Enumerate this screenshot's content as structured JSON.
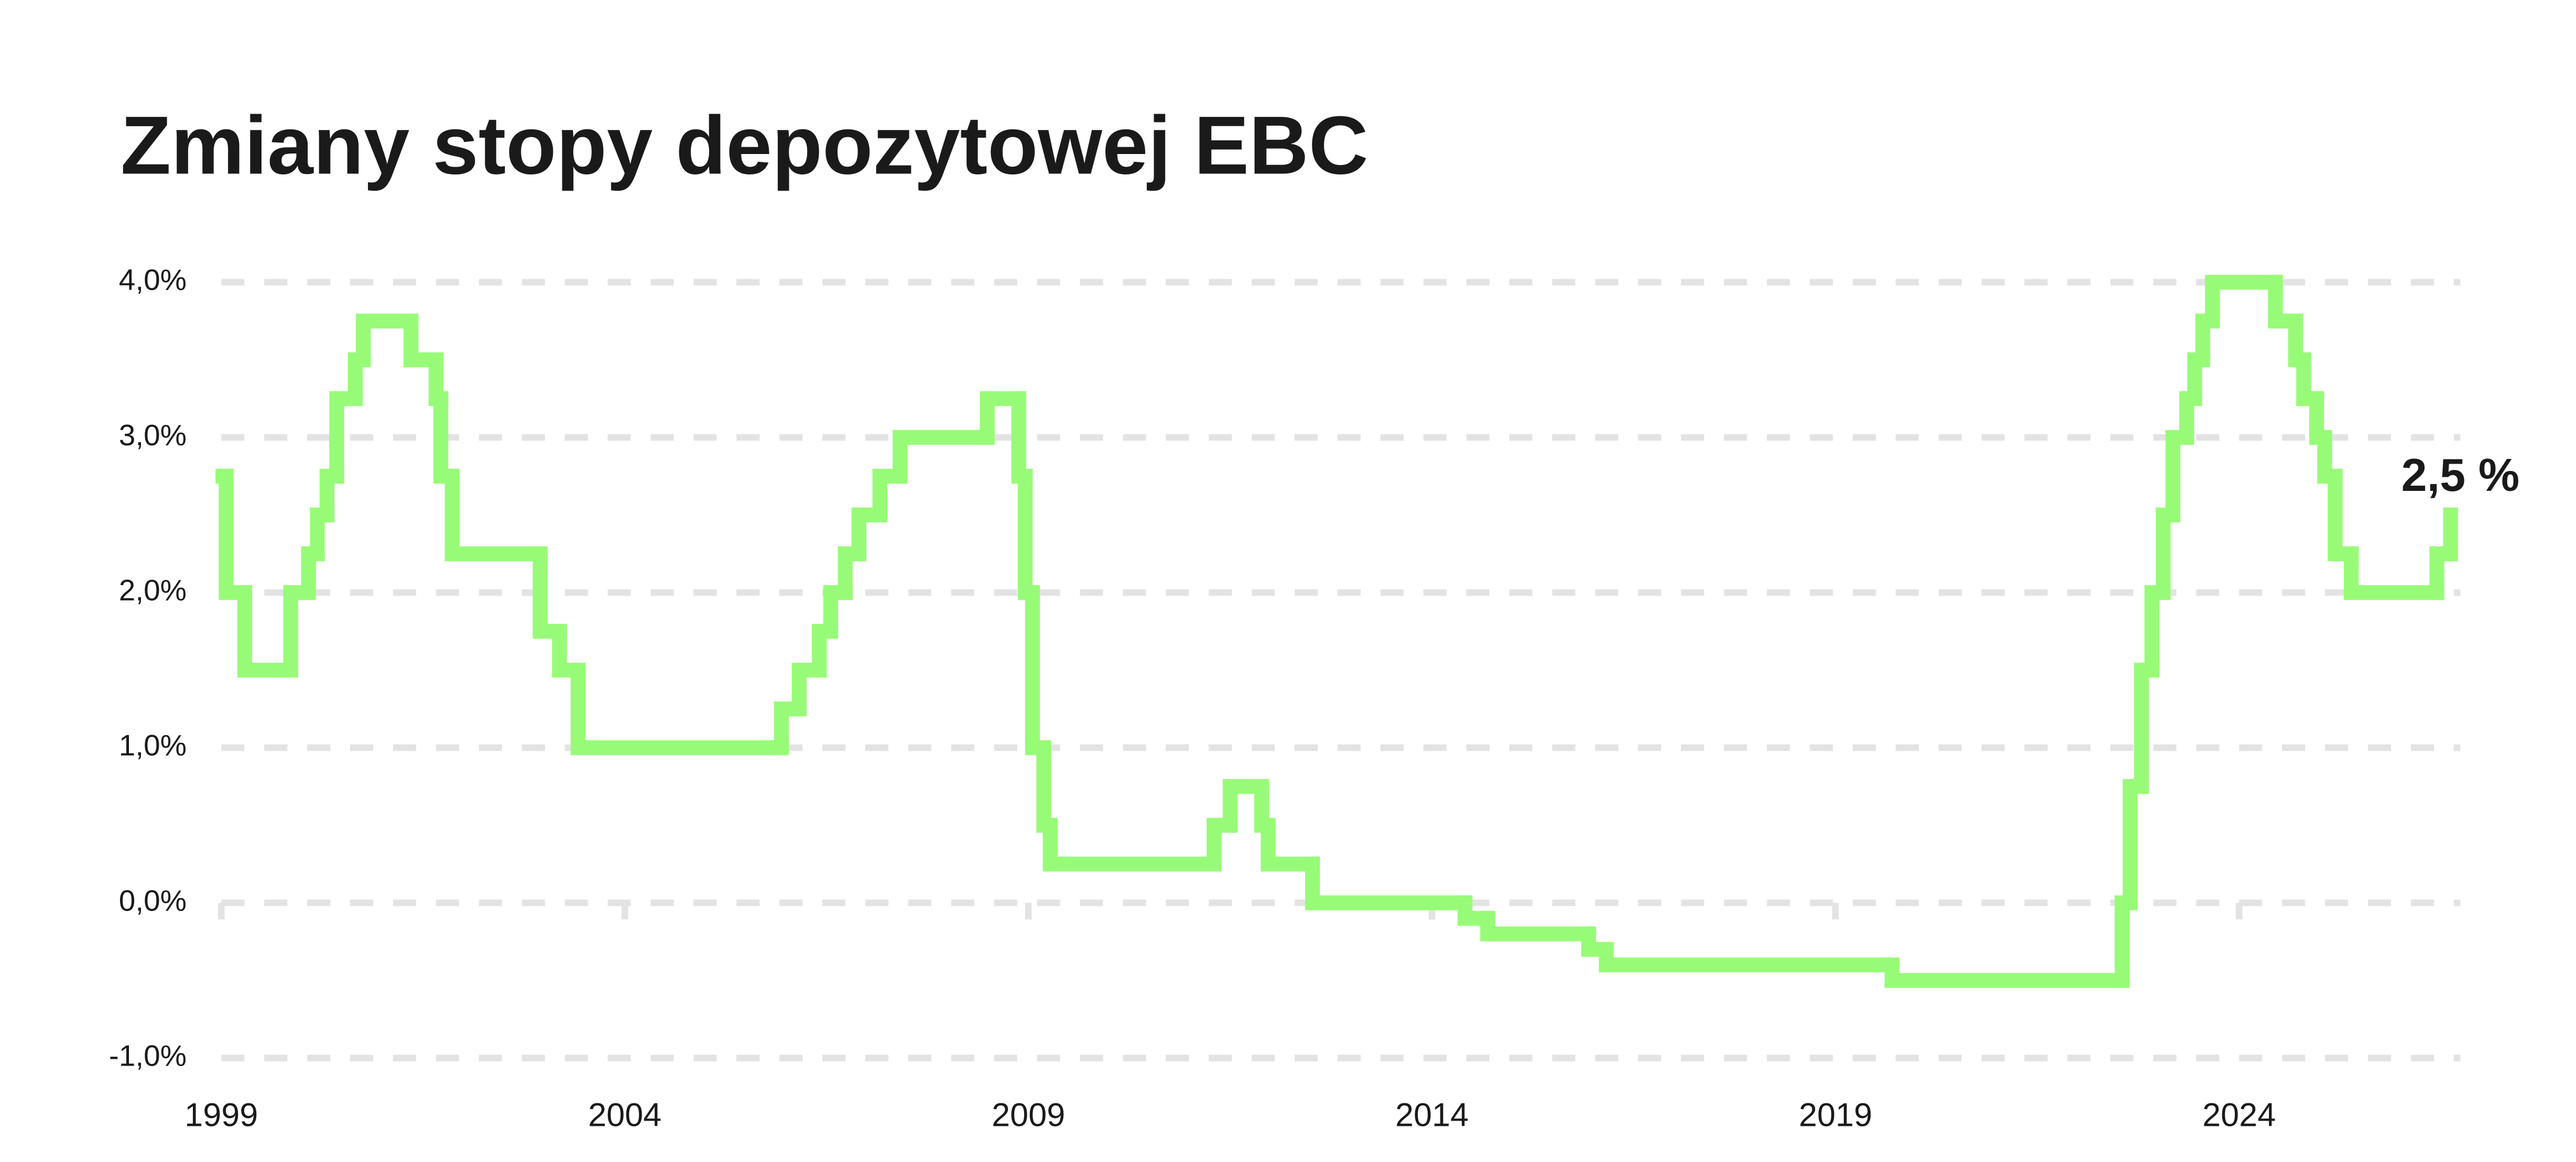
{
  "chart_data": {
    "type": "step",
    "title": "Zmiany stopy depozytowej EBC",
    "x": [
      1999.02,
      1999.06,
      1999.29,
      1999.86,
      2000.08,
      2000.19,
      2000.31,
      2000.43,
      2000.66,
      2000.76,
      2001.35,
      2001.66,
      2001.72,
      2001.86,
      2002.95,
      2003.19,
      2003.42,
      2005.94,
      2006.16,
      2006.41,
      2006.55,
      2006.73,
      2006.9,
      2007.16,
      2007.41,
      2008.49,
      2008.88,
      2008.96,
      2009.05,
      2009.19,
      2009.27,
      2011.3,
      2011.5,
      2011.89,
      2011.97,
      2012.52,
      2014.41,
      2014.69,
      2015.94,
      2016.16,
      2019.7,
      2022.55,
      2022.65,
      2022.79,
      2022.92,
      2023.06,
      2023.18,
      2023.35,
      2023.45,
      2023.55,
      2023.67,
      2024.45,
      2024.7,
      2024.8,
      2024.96,
      2025.06,
      2025.19,
      2025.39,
      2026.45,
      2026.62
    ],
    "values": [
      2.75,
      2.0,
      1.5,
      2.0,
      2.25,
      2.5,
      2.75,
      3.25,
      3.5,
      3.75,
      3.5,
      3.25,
      2.75,
      2.25,
      1.75,
      1.5,
      1.0,
      1.25,
      1.5,
      1.75,
      2.0,
      2.25,
      2.5,
      2.75,
      3.0,
      3.25,
      2.75,
      2.0,
      1.0,
      0.5,
      0.25,
      0.5,
      0.75,
      0.5,
      0.25,
      0.0,
      -0.1,
      -0.2,
      -0.3,
      -0.4,
      -0.5,
      0.0,
      0.75,
      1.5,
      2.0,
      2.5,
      3.0,
      3.25,
      3.5,
      3.75,
      4.0,
      3.75,
      3.5,
      3.25,
      3.0,
      2.75,
      2.25,
      2.0,
      2.25,
      2.5
    ],
    "color": "#98fb78",
    "end_label": "2,5 %",
    "xlim": [
      1999,
      2026.66
    ],
    "xticks": [
      1999,
      2004,
      2009,
      2014,
      2019,
      2024
    ],
    "ylim": [
      -1,
      4
    ],
    "yticks": [
      {
        "value": -1,
        "label": "-1,0%"
      },
      {
        "value": 0,
        "label": "0,0%"
      },
      {
        "value": 1,
        "label": "1,0%"
      },
      {
        "value": 2,
        "label": "2,0%"
      },
      {
        "value": 3,
        "label": "3,0%"
      },
      {
        "value": 4,
        "label": "4,0%"
      }
    ],
    "grid": true
  }
}
